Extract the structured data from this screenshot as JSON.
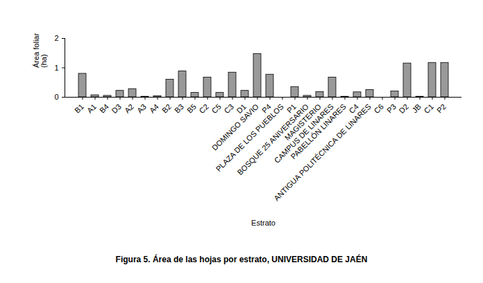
{
  "chart_data": {
    "type": "bar",
    "title": "Figura 5. Área de las hojas por estrato, UNIVERSIDAD DE JAÉN",
    "x_label": "Estrato",
    "y_label": "Área foliar (ha)",
    "categories": [
      "B1",
      "A1",
      "B4",
      "D3",
      "A2",
      "A3",
      "A4",
      "B2",
      "B3",
      "B5",
      "C2",
      "C5",
      "C3",
      "D1",
      "DOMINGO SAVIO",
      "P4",
      "PLAZA DE LOS PUEBLOS",
      "P1",
      "BOSQUE 25 ANIVERSARIO",
      "MAGISTERIO",
      "CAMPUS DE LINARES",
      "PABELLÓN LINARES",
      "C4",
      "ANTIGUA POLITÉCNICA DE LINARES",
      "C6",
      "P3",
      "D2",
      "JB",
      "C1",
      "P2"
    ],
    "values": [
      0.8,
      0.07,
      0.05,
      0.22,
      0.28,
      0.02,
      0.04,
      0.6,
      0.88,
      0.15,
      0.67,
      0.15,
      0.84,
      0.22,
      1.47,
      0.77,
      0,
      0.35,
      0.05,
      0.18,
      0.67,
      0.02,
      0.17,
      0.25,
      0,
      0.2,
      1.15,
      0.02,
      1.17,
      1.17
    ],
    "color": "#999999",
    "ylim": [
      0,
      2
    ],
    "yticks": [
      0,
      1,
      2
    ],
    "grid": false
  }
}
